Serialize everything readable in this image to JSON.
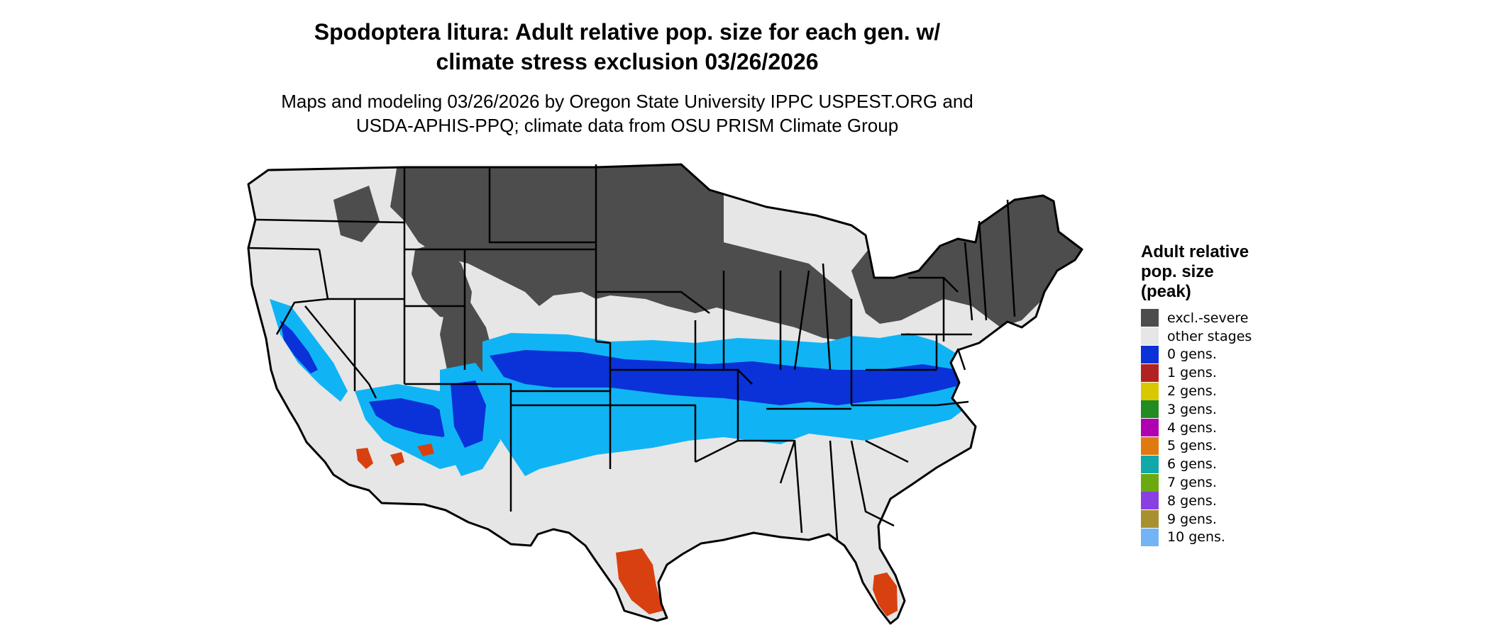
{
  "title_line1": "Spodoptera litura: Adult relative pop. size for each gen. w/",
  "title_line2": "climate stress exclusion 03/26/2026",
  "subtitle_line1": "Maps and modeling 03/26/2026 by Oregon State University IPPC USPEST.ORG and",
  "subtitle_line2": "USDA-APHIS-PPQ; climate data from OSU PRISM Climate Group",
  "legend": {
    "title_lines": [
      "Adult relative",
      "pop. size",
      "(peak)"
    ],
    "items": [
      {
        "label": "excl.-severe",
        "color": "#4d4d4d"
      },
      {
        "label": "other stages",
        "color": "#e6e6e6"
      },
      {
        "label": "0 gens.",
        "color": "#0a32d8"
      },
      {
        "label": "1 gens.",
        "color": "#b22222"
      },
      {
        "label": "2 gens.",
        "color": "#d9c800"
      },
      {
        "label": "3 gens.",
        "color": "#228b22"
      },
      {
        "label": "4 gens.",
        "color": "#b000b0"
      },
      {
        "label": "5 gens.",
        "color": "#e07a10"
      },
      {
        "label": "6 gens.",
        "color": "#10a8a8"
      },
      {
        "label": "7 gens.",
        "color": "#6aaa10"
      },
      {
        "label": "8 gens.",
        "color": "#8a40e0"
      },
      {
        "label": "9 gens.",
        "color": "#a89030"
      },
      {
        "label": "10 gens.",
        "color": "#74b4f4"
      }
    ]
  },
  "map_colors": {
    "land": "#e6e6e6",
    "excluded": "#4d4d4d",
    "zero_gens_dark": "#0a32d8",
    "zero_gens_light": "#10b4f4",
    "one_gens": "#d84010",
    "border": "#000000"
  }
}
